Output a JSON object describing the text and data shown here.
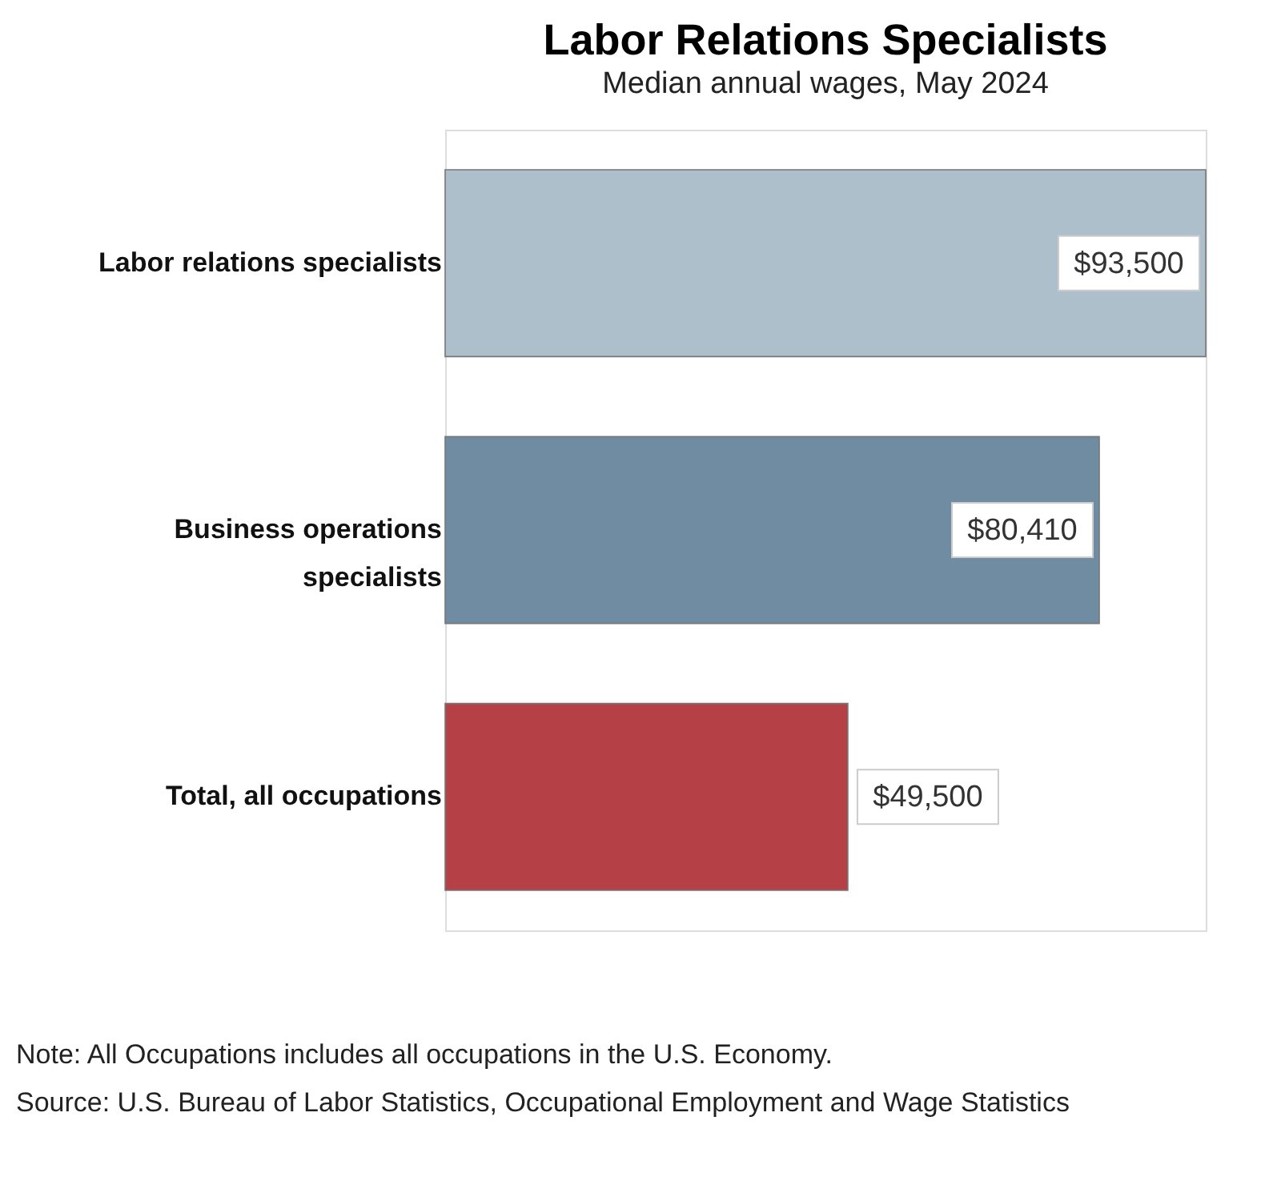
{
  "chart_data": {
    "type": "bar",
    "orientation": "horizontal",
    "title": "Labor Relations Specialists",
    "subtitle": "Median annual wages, May 2024",
    "categories": [
      "Labor relations specialists",
      "Business operations specialists",
      "Total, all occupations"
    ],
    "values": [
      93500,
      80410,
      49500
    ],
    "colors": [
      "#adbfca",
      "#6f8ca2",
      "#b54045"
    ],
    "value_labels": [
      "$93,500",
      "$80,410",
      "$49,500"
    ],
    "xlim": [
      0,
      93500
    ],
    "tick_labels": "y",
    "annotations": [
      "Note: All Occupations includes all occupations in the U.S. Economy.",
      "Source: U.S. Bureau of Labor Statistics, Occupational Employment and Wage Statistics"
    ]
  }
}
